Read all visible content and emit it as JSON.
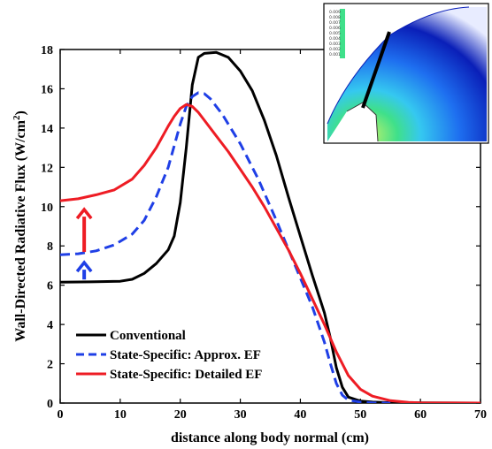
{
  "chart_data": {
    "type": "line",
    "xlabel": "distance along body normal (cm)",
    "ylabel_main": "Wall-Directed Radiative Flux (W/cm",
    "ylabel_sup": "2",
    "ylabel_tail": ")",
    "xlim": [
      0,
      70
    ],
    "ylim": [
      0,
      18
    ],
    "xticks": [
      0,
      10,
      20,
      30,
      40,
      50,
      60,
      70
    ],
    "yticks": [
      0,
      2,
      4,
      6,
      8,
      10,
      12,
      14,
      16,
      18
    ],
    "grid": false,
    "legend_position": "bottom-left",
    "series": [
      {
        "name": "Conventional",
        "color": "#000000",
        "dash": "solid",
        "x": [
          0,
          5,
          10,
          12,
          14,
          16,
          18,
          19,
          20,
          21,
          22,
          23,
          24,
          26,
          28,
          30,
          32,
          34,
          36,
          38,
          40,
          42,
          44,
          45,
          46,
          47,
          48,
          50,
          52,
          55,
          60,
          70
        ],
        "y": [
          6.15,
          6.17,
          6.2,
          6.3,
          6.6,
          7.1,
          7.8,
          8.5,
          10.2,
          13.0,
          16.2,
          17.6,
          17.8,
          17.85,
          17.6,
          16.9,
          15.9,
          14.4,
          12.6,
          10.5,
          8.5,
          6.5,
          4.6,
          3.3,
          1.8,
          0.8,
          0.3,
          0.1,
          0.05,
          0.02,
          0.01,
          0.0
        ]
      },
      {
        "name": "State-Specific: Approx. EF",
        "color": "#1f3fe6",
        "dash": "dashed",
        "x": [
          0,
          3,
          6,
          9,
          12,
          14,
          16,
          18,
          19,
          20,
          21,
          22,
          23,
          24,
          25,
          27,
          30,
          33,
          36,
          39,
          42,
          44,
          45,
          46,
          47,
          48,
          50,
          52,
          55
        ],
        "y": [
          7.55,
          7.6,
          7.75,
          8.05,
          8.6,
          9.3,
          10.5,
          12.0,
          13.1,
          14.2,
          15.1,
          15.6,
          15.8,
          15.75,
          15.5,
          14.7,
          13.2,
          11.4,
          9.3,
          7.1,
          4.9,
          3.1,
          2.0,
          1.0,
          0.4,
          0.15,
          0.05,
          0.01,
          0.0
        ]
      },
      {
        "name": "State-Specific: Detailed EF",
        "color": "#ee1c24",
        "dash": "solid",
        "x": [
          0,
          3,
          6,
          9,
          12,
          14,
          16,
          18,
          19,
          20,
          21,
          22,
          23,
          24,
          26,
          28,
          30,
          32,
          34,
          36,
          38,
          40,
          42,
          44,
          45,
          46,
          47,
          48,
          50,
          52,
          55,
          58,
          60,
          70
        ],
        "y": [
          10.3,
          10.4,
          10.6,
          10.85,
          11.4,
          12.1,
          13.0,
          14.1,
          14.6,
          15.0,
          15.2,
          15.1,
          14.8,
          14.4,
          13.6,
          12.8,
          11.9,
          11.0,
          10.0,
          8.9,
          7.8,
          6.6,
          5.3,
          4.0,
          3.3,
          2.6,
          2.0,
          1.4,
          0.7,
          0.35,
          0.12,
          0.03,
          0.01,
          0.0
        ]
      }
    ],
    "annotations": [
      {
        "type": "arrow",
        "color": "#ee1c24",
        "x": 4,
        "y_from": 7.6,
        "y_to": 10.3
      },
      {
        "type": "arrow",
        "color": "#1f3fe6",
        "x": 4,
        "y_from": 6.2,
        "y_to": 7.6
      }
    ]
  },
  "inset": {
    "description_colors": [
      "#0a1fb8",
      "#1e6ff0",
      "#35c8f0",
      "#3fe08a",
      "#c6f26a"
    ],
    "legend_ticks": [
      "0.009",
      "0.008",
      "0.007",
      "0.006",
      "0.005",
      "0.004",
      "0.003",
      "0.002",
      "0.001"
    ]
  }
}
